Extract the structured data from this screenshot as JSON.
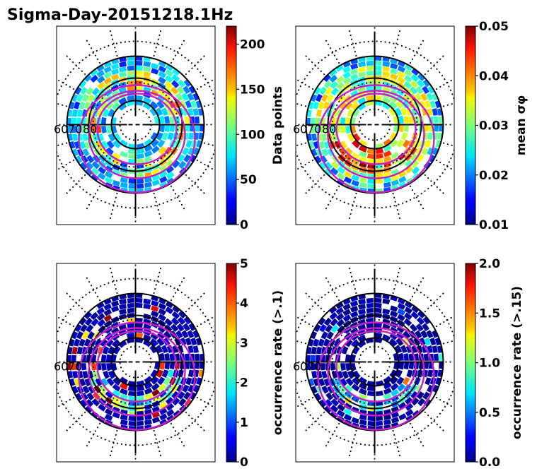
{
  "figure": {
    "title": "Sigma-Day-20151218.1Hz"
  },
  "panels": [
    {
      "id": "tl",
      "colorbar": {
        "label": "Data points",
        "ticks": [
          "0",
          "50",
          "100",
          "150",
          "200"
        ],
        "min": 0,
        "max": 220
      },
      "lat_labels": [
        "60",
        "70",
        "80"
      ]
    },
    {
      "id": "tr",
      "colorbar": {
        "label": "mean σφ",
        "ticks": [
          "0.01",
          "0.02",
          "0.03",
          "0.04",
          "0.05"
        ],
        "min": 0.01,
        "max": 0.05
      },
      "lat_labels": [
        "60",
        "70",
        "80"
      ]
    },
    {
      "id": "bl",
      "colorbar": {
        "label": "occurrence rate (>.1)",
        "ticks": [
          "0",
          "1",
          "2",
          "3",
          "4",
          "5"
        ],
        "min": 0,
        "max": 5
      },
      "lat_labels": [
        "60",
        "70"
      ]
    },
    {
      "id": "br",
      "colorbar": {
        "label": "occurrence rate (>.15)",
        "ticks": [
          "0.0",
          "0.5",
          "1.0",
          "1.5",
          "2.0"
        ],
        "min": 0,
        "max": 2
      },
      "lat_labels": [
        "60",
        "70"
      ]
    }
  ],
  "chart_data": {
    "type": "heatmap",
    "projection": "polar (magnetic latitude / local time)",
    "colormap": "jet",
    "colorbars": [
      {
        "label": "Data points",
        "range": [
          0,
          220
        ],
        "ticks": [
          0,
          50,
          100,
          150,
          200
        ]
      },
      {
        "label": "mean σφ",
        "range": [
          0.01,
          0.05
        ],
        "ticks": [
          0.01,
          0.02,
          0.03,
          0.04,
          0.05
        ]
      },
      {
        "label": "occurrence rate (>.1)",
        "range": [
          0,
          5
        ],
        "ticks": [
          0,
          1,
          2,
          3,
          4,
          5
        ]
      },
      {
        "label": "occurrence rate (>.15)",
        "range": [
          0,
          2
        ],
        "ticks": [
          0.0,
          0.5,
          1.0,
          1.5,
          2.0
        ]
      }
    ],
    "latitude_labels": [
      60,
      70,
      80
    ]
  }
}
